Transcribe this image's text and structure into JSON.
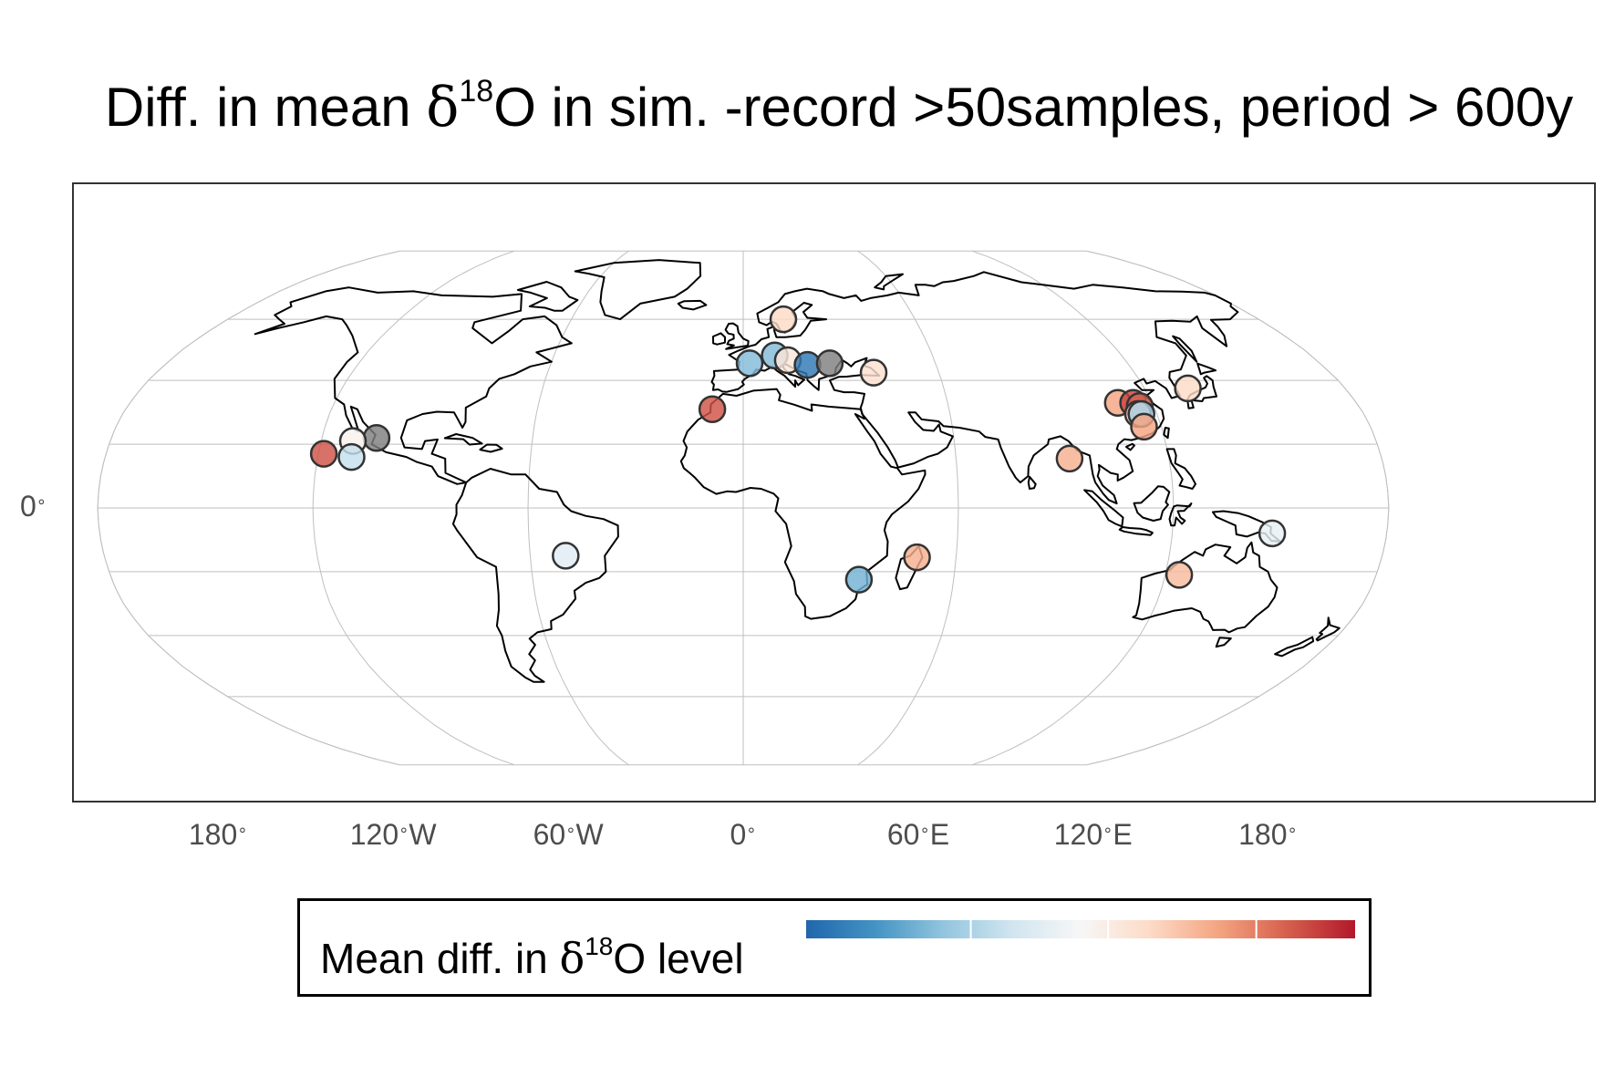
{
  "title": {
    "before": "Diff. in mean ",
    "delta": "δ",
    "sup": "18",
    "after": "O in sim. -record >50samples, period > 600y"
  },
  "axes": {
    "x_ticks": [
      "180",
      "120",
      "60",
      "0",
      "60",
      "120",
      "180"
    ],
    "x_suffix": [
      "",
      "W",
      "W",
      "",
      "E",
      "E",
      ""
    ],
    "x_tick_lon": [
      -180,
      -120,
      -60,
      0,
      60,
      120,
      180
    ],
    "y_ticks": [
      "0"
    ],
    "y_tick_lat": [
      0
    ],
    "degree_symbol": "∘"
  },
  "legend": {
    "before": "Mean diff. in ",
    "delta": "δ",
    "sup": "18",
    "after": "O level",
    "colormap": [
      "#2166ac",
      "#4393c3",
      "#92c5de",
      "#d1e5f0",
      "#f7f7f7",
      "#fddbc7",
      "#f4a582",
      "#d6604d",
      "#b2182b"
    ],
    "na_color": "#7f7f7f"
  },
  "colors": {
    "land_outline": "#000000",
    "graticule": "#bfbfbf",
    "frame": "#333333",
    "marker_edge": "#333333"
  },
  "chart_data": {
    "type": "scatter",
    "projection": "robinson",
    "value_scale": "relative diverging (-1 = strong blue, +1 = strong red)",
    "points": [
      {
        "lon": 14,
        "lat": 60,
        "value": 0.25
      },
      {
        "lon": 10,
        "lat": 48,
        "value": -0.55
      },
      {
        "lon": 2,
        "lat": 45.5,
        "value": -0.55
      },
      {
        "lon": 14,
        "lat": 46.5,
        "value": 0.15
      },
      {
        "lon": 20,
        "lat": 45,
        "value": -0.9
      },
      {
        "lon": 27,
        "lat": 45.5,
        "value": null
      },
      {
        "lon": 40,
        "lat": 42.5,
        "value": 0.2
      },
      {
        "lon": -9,
        "lat": 31,
        "value": 0.8
      },
      {
        "lon": -104.5,
        "lat": 22,
        "value": null
      },
      {
        "lon": -111,
        "lat": 21,
        "value": 0.05
      },
      {
        "lon": -118.5,
        "lat": 17,
        "value": 0.8
      },
      {
        "lon": -110.5,
        "lat": 16,
        "value": -0.3
      },
      {
        "lon": -50,
        "lat": -15,
        "value": -0.15
      },
      {
        "lon": 33,
        "lat": -22.5,
        "value": -0.6
      },
      {
        "lon": 49,
        "lat": -15.5,
        "value": 0.45
      },
      {
        "lon": 92,
        "lat": 15.5,
        "value": 0.45
      },
      {
        "lon": 110,
        "lat": 33,
        "value": 0.5
      },
      {
        "lon": 114.5,
        "lat": 33,
        "value": 0.85
      },
      {
        "lon": 116,
        "lat": 32,
        "value": 0.75
      },
      {
        "lon": 114.5,
        "lat": 29.5,
        "value": 0.3
      },
      {
        "lon": 115.5,
        "lat": 29.5,
        "value": -0.4
      },
      {
        "lon": 115,
        "lat": 25.5,
        "value": 0.5
      },
      {
        "lon": 133,
        "lat": 37.5,
        "value": 0.25
      },
      {
        "lon": 148,
        "lat": -8,
        "value": -0.1
      },
      {
        "lon": 124,
        "lat": -21,
        "value": 0.4
      }
    ]
  }
}
